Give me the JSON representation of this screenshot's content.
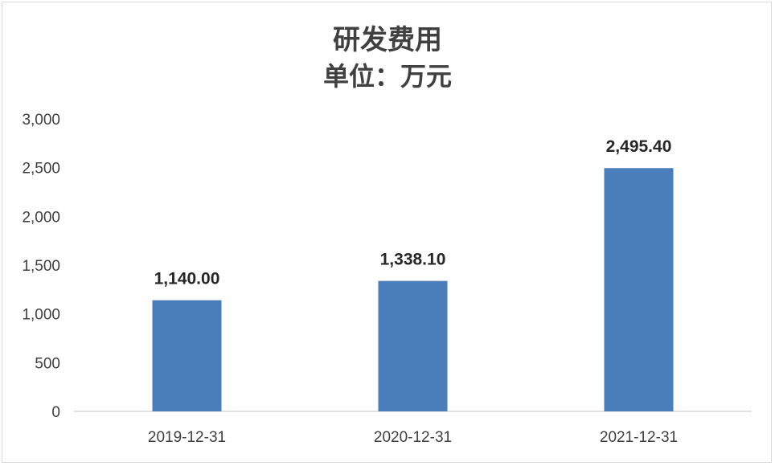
{
  "chart_data": {
    "type": "bar",
    "title": "研发费用",
    "subtitle": "单位：万元",
    "categories": [
      "2019-12-31",
      "2020-12-31",
      "2021-12-31"
    ],
    "series": [
      {
        "values": [
          1140.0,
          1338.1,
          2495.4
        ]
      }
    ],
    "data_labels": [
      "1,140.00",
      "1,338.10",
      "2,495.40"
    ],
    "yticks": [
      "0",
      "500",
      "1,000",
      "1,500",
      "2,000",
      "2,500",
      "3,000"
    ],
    "ylim": [
      0,
      3000
    ],
    "grid": false,
    "legend": "none",
    "bar_color": "#4a7ebb",
    "axis_color": "#d9d9d9"
  }
}
